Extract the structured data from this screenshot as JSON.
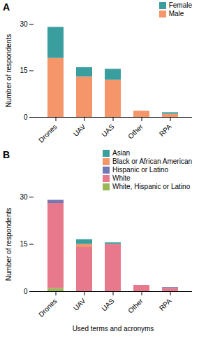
{
  "chart_data": [
    {
      "type": "bar",
      "stacked": true,
      "annotations": [
        "A"
      ],
      "categories": [
        "Drones",
        "UAV",
        "UAS",
        "Other",
        "RPA"
      ],
      "series": [
        {
          "name": "Male",
          "color": "#F4956A",
          "values": [
            19,
            13,
            12,
            2,
            1
          ]
        },
        {
          "name": "Female",
          "color": "#3A9E9E",
          "values": [
            10,
            3,
            3.5,
            0,
            0.5
          ]
        }
      ],
      "ylabel": "Number of respondents",
      "ylim": [
        0,
        30
      ],
      "yticks": [
        0,
        15,
        30
      ],
      "legend": "upper right",
      "grid": false
    },
    {
      "type": "bar",
      "stacked": true,
      "annotations": [
        "B"
      ],
      "categories": [
        "Drones",
        "UAV",
        "UAS",
        "Other",
        "RPA"
      ],
      "series": [
        {
          "name": "White, Hispanic or Latino",
          "color": "#9AB858",
          "values": [
            1,
            0,
            0,
            0,
            0
          ]
        },
        {
          "name": "White",
          "color": "#E8798C",
          "values": [
            27,
            14,
            15,
            2,
            1
          ]
        },
        {
          "name": "Hispanic or Latino",
          "color": "#7477B5",
          "values": [
            1,
            0,
            0,
            0,
            0.3
          ]
        },
        {
          "name": "Black or African American",
          "color": "#F4956A",
          "values": [
            0,
            1,
            0,
            0,
            0
          ]
        },
        {
          "name": "Asian",
          "color": "#3A9E9E",
          "values": [
            0,
            1.5,
            0.5,
            0,
            0
          ]
        }
      ],
      "ylabel": "Number of respondents",
      "xlabel": "Used terms and acronyms",
      "ylim": [
        0,
        30
      ],
      "yticks": [
        0,
        15,
        30
      ],
      "legend": "upper right",
      "grid": false
    }
  ]
}
